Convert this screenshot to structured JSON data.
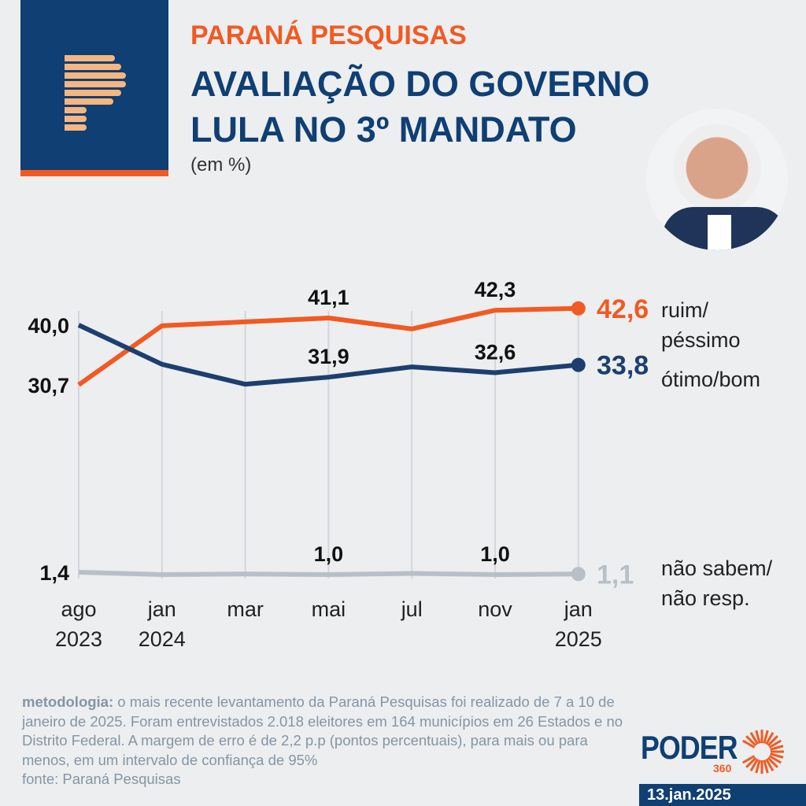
{
  "header": {
    "brand": "PARANÁ PESQUISAS",
    "title": "AVALIAÇÃO DO GOVERNO LULA NO 3º MANDATO",
    "unit": "(em %)"
  },
  "chart_data": {
    "type": "line",
    "title": "AVALIAÇÃO DO GOVERNO LULA NO 3º MANDATO",
    "ylabel": "em %",
    "categories": [
      [
        "ago",
        "2023"
      ],
      [
        "jan",
        "2024"
      ],
      [
        "mar",
        ""
      ],
      [
        "mai",
        ""
      ],
      [
        "jul",
        ""
      ],
      [
        "nov",
        ""
      ],
      [
        "jan",
        "2025"
      ]
    ],
    "series": [
      {
        "name": "ruim/ péssimo",
        "name_lines": [
          "ruim/",
          "péssimo"
        ],
        "color": "#f15a22",
        "values": [
          30.7,
          39.9,
          40.5,
          41.1,
          39.4,
          42.3,
          42.6
        ],
        "labels": {
          "0": "30,7",
          "3": "41,1",
          "5": "42,3",
          "6": "42,6"
        }
      },
      {
        "name": "ótimo/bom",
        "name_lines": [
          "ótimo/bom"
        ],
        "color": "#1d3f6e",
        "values": [
          40.0,
          33.9,
          30.8,
          31.9,
          33.5,
          32.6,
          33.8
        ],
        "labels": {
          "0": "40,0",
          "3": "31,9",
          "5": "32,6",
          "6": "33,8"
        }
      },
      {
        "name": "não sabem/ não resp.",
        "name_lines": [
          "não sabem/",
          "não resp."
        ],
        "color": "#b8c0c6",
        "values": [
          1.4,
          1.0,
          1.1,
          1.0,
          1.2,
          1.0,
          1.1
        ],
        "labels": {
          "0": "1,4",
          "3": "1,0",
          "5": "1,0",
          "6": "1,1"
        }
      }
    ],
    "grid": "vertical"
  },
  "footer": {
    "method_label": "metodologia:",
    "method_text": " o mais recente levantamento da Paraná Pesquisas foi realizado de 7 a 10 de janeiro de 2025. Foram entrevistados 2.018 eleitores em 164 municípios em 26 Estados e no Distrito Federal. A margem de erro é de 2,2 p.p (pontos percentuais), para mais ou para menos, em um intervalo de confiança de 95%",
    "source": "fonte: Paraná Pesquisas",
    "publisher": "PODER",
    "publisher_sub": "360",
    "date": "13.jan.2025"
  }
}
